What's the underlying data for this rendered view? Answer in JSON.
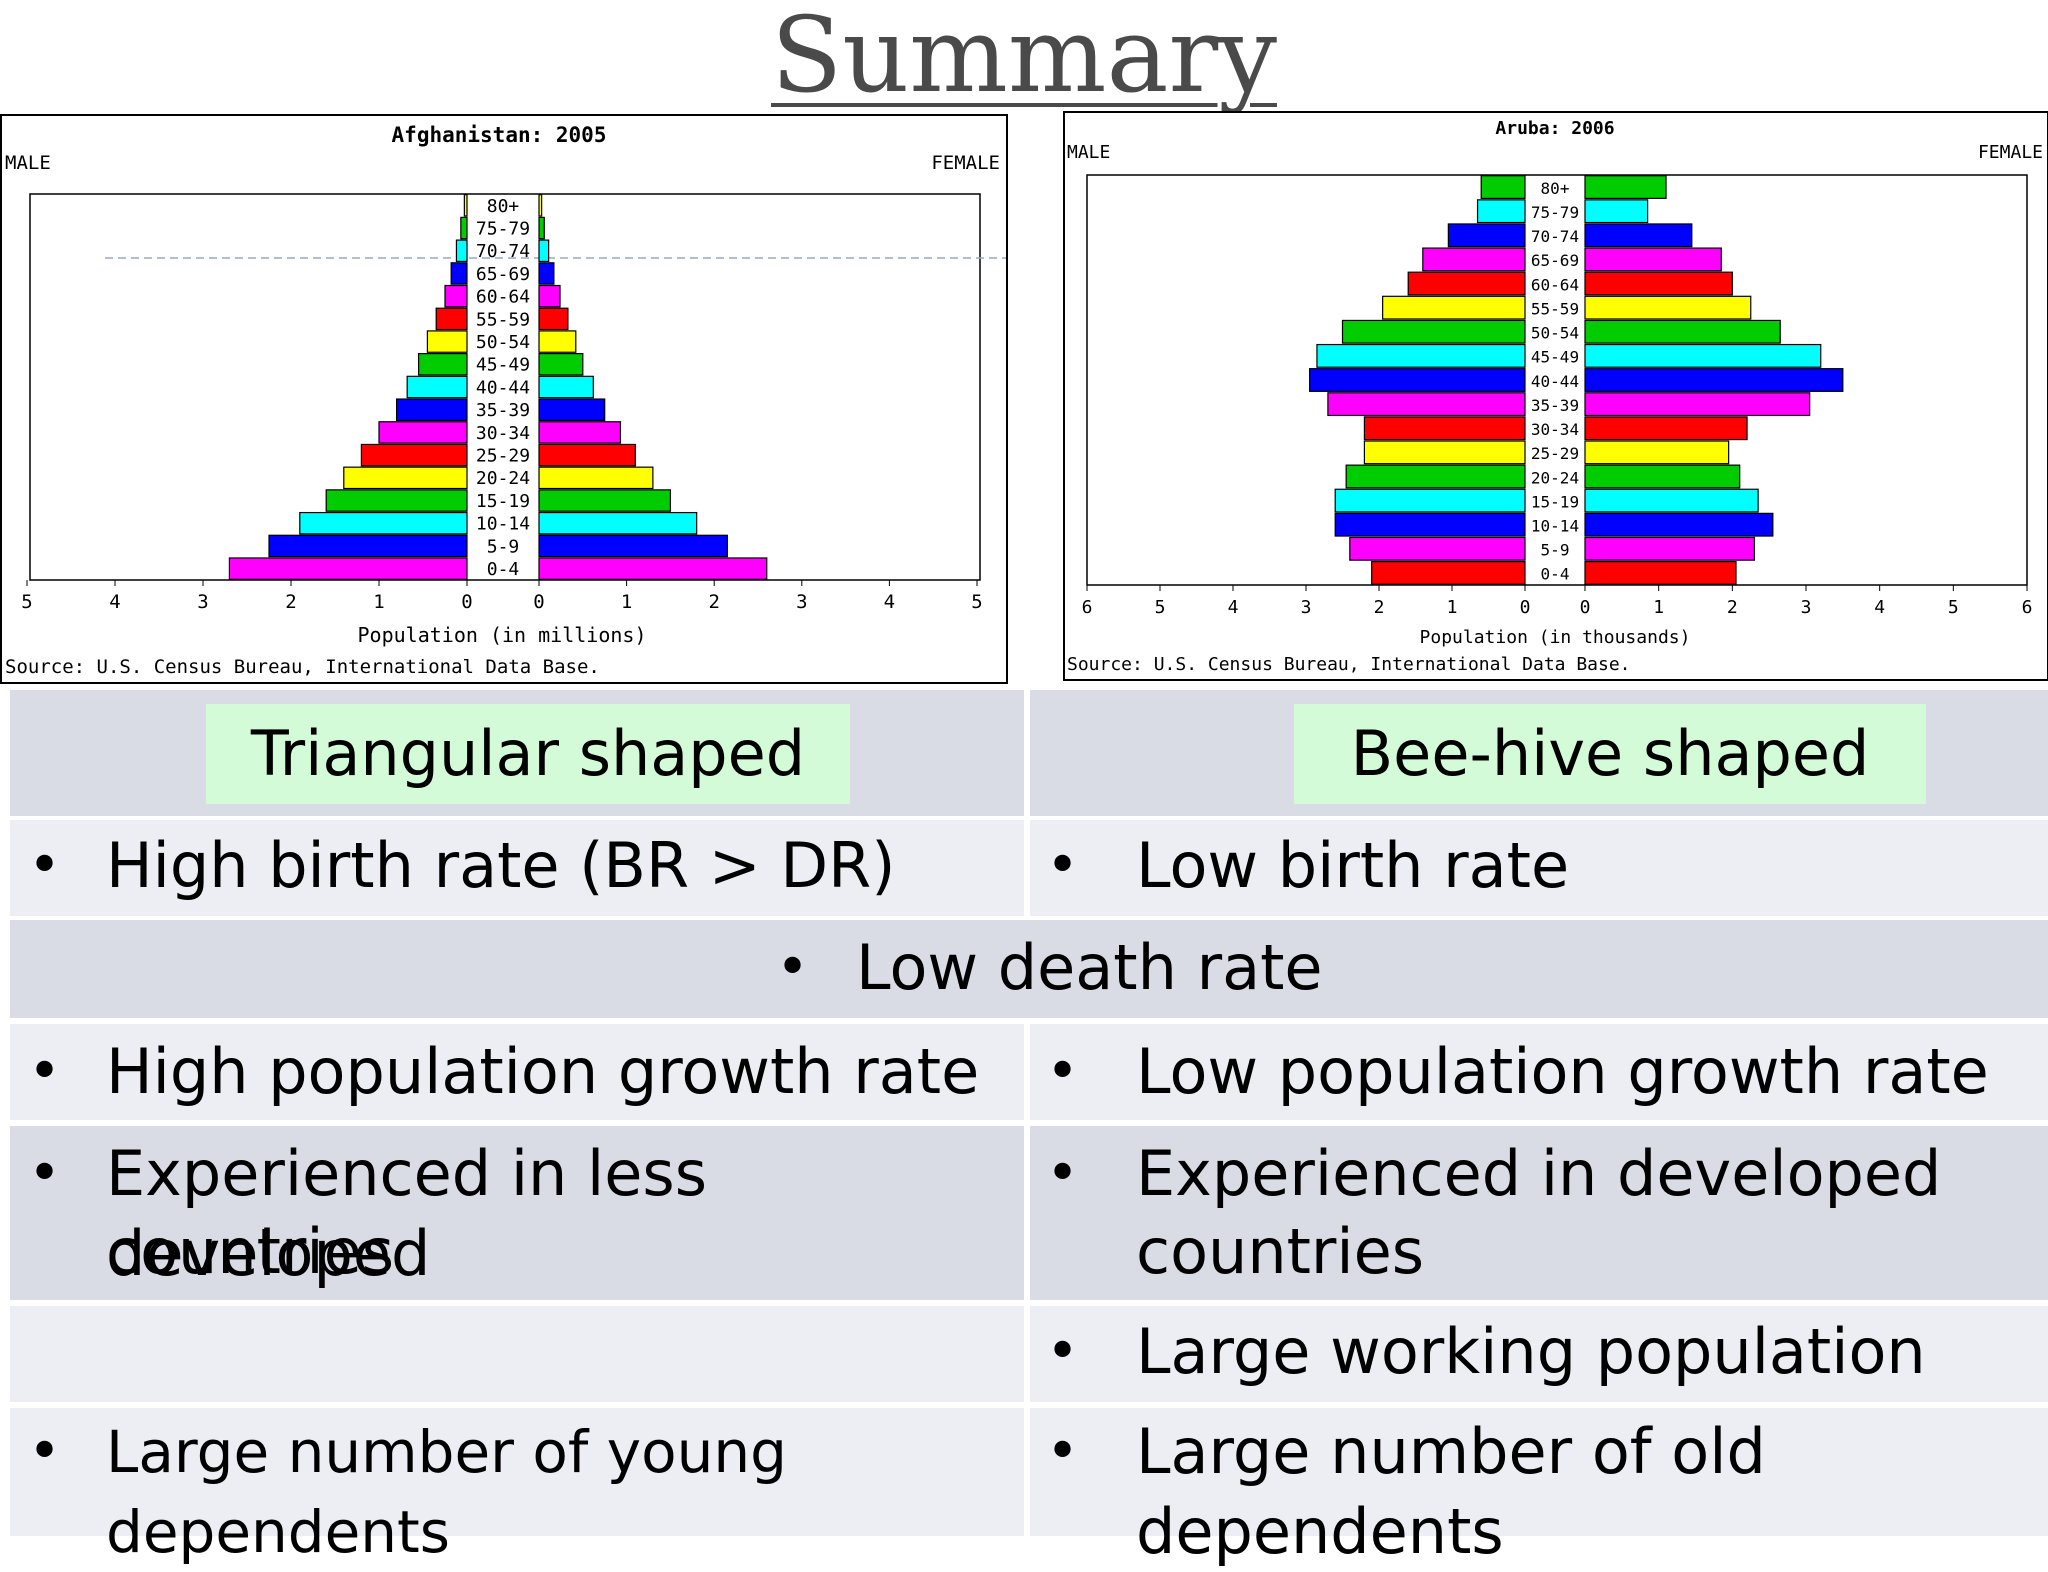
{
  "title": "Summary",
  "chart_data": [
    {
      "type": "bar",
      "title": "Afghanistan: 2005",
      "left_label": "MALE",
      "right_label": "FEMALE",
      "xlabel": "Population (in millions)",
      "source": "Source: U.S. Census Bureau, International Data Base.",
      "categories": [
        "0-4",
        "5-9",
        "10-14",
        "15-19",
        "20-24",
        "25-29",
        "30-34",
        "35-39",
        "40-44",
        "45-49",
        "50-54",
        "55-59",
        "60-64",
        "65-69",
        "70-74",
        "75-79",
        "80+"
      ],
      "series": [
        {
          "name": "MALE",
          "values": [
            2.7,
            2.25,
            1.9,
            1.6,
            1.4,
            1.2,
            1.0,
            0.8,
            0.68,
            0.55,
            0.45,
            0.35,
            0.25,
            0.18,
            0.12,
            0.07,
            0.03
          ]
        },
        {
          "name": "FEMALE",
          "values": [
            2.6,
            2.15,
            1.8,
            1.5,
            1.3,
            1.1,
            0.93,
            0.75,
            0.62,
            0.5,
            0.42,
            0.33,
            0.24,
            0.17,
            0.11,
            0.06,
            0.03
          ]
        }
      ],
      "xlim": [
        0,
        5
      ],
      "tick_labels": [
        "5",
        "4",
        "3",
        "2",
        "1",
        "0"
      ],
      "bar_colors": [
        "#ff00ff",
        "#0000ff",
        "#00ffff",
        "#00cc00",
        "#ffff00",
        "#ff0000"
      ]
    },
    {
      "type": "bar",
      "title": "Aruba: 2006",
      "left_label": "MALE",
      "right_label": "FEMALE",
      "xlabel": "Population (in thousands)",
      "source": "Source: U.S. Census Bureau, International Data Base.",
      "categories": [
        "0-4",
        "5-9",
        "10-14",
        "15-19",
        "20-24",
        "25-29",
        "30-34",
        "35-39",
        "40-44",
        "45-49",
        "50-54",
        "55-59",
        "60-64",
        "65-69",
        "70-74",
        "75-79",
        "80+"
      ],
      "series": [
        {
          "name": "MALE",
          "values": [
            2.1,
            2.4,
            2.6,
            2.6,
            2.45,
            2.2,
            2.2,
            2.7,
            2.95,
            2.85,
            2.5,
            1.95,
            1.6,
            1.4,
            1.05,
            0.65,
            0.6
          ]
        },
        {
          "name": "FEMALE",
          "values": [
            2.05,
            2.3,
            2.55,
            2.35,
            2.1,
            1.95,
            2.2,
            3.05,
            3.5,
            3.2,
            2.65,
            2.25,
            2.0,
            1.85,
            1.45,
            0.85,
            1.1
          ]
        }
      ],
      "xlim": [
        0,
        6
      ],
      "tick_labels": [
        "6",
        "5",
        "4",
        "3",
        "2",
        "1",
        "0"
      ],
      "bar_colors": [
        "#ff0000",
        "#ff00ff",
        "#0000ff",
        "#00ffff",
        "#00cc00",
        "#ffff00"
      ]
    }
  ],
  "table": {
    "header_left": "Triangular shaped",
    "header_right": "Bee-hive shaped",
    "bullet": "•",
    "rows": {
      "r2_left": "High birth rate (BR > DR)",
      "r2_right": "Low birth rate",
      "r3_center": "Low death rate",
      "r4_left": "High population growth rate",
      "r4_right": "Low population growth rate",
      "r5_left_1": "Experienced in less developed",
      "r5_left_2": "countries",
      "r5_right_1": "Experienced in developed",
      "r5_right_2": "countries",
      "r6_right": "Large working population",
      "r7_left": "Large number of young dependents",
      "r7_right": "Large number of old dependents"
    }
  }
}
